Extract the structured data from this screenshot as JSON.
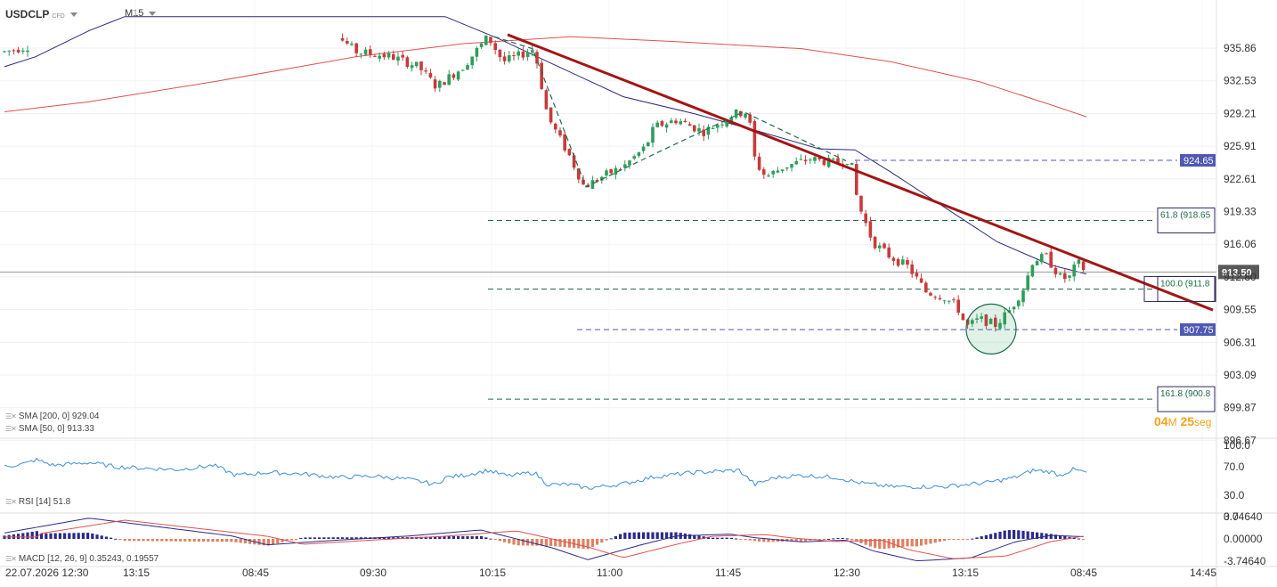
{
  "header": {
    "symbol": "USDCLP",
    "instrument_type": "CFD",
    "timeframe": "M15"
  },
  "indicators": {
    "sma200_label": "SMA [200, 0] 929.04",
    "sma50_label": "SMA [50, 0] 913.33",
    "rsi_label": "RSI [14] 51.8",
    "macd_label": "MACD [12, 26, 9] 0.35243, 0.19557"
  },
  "countdown": {
    "minutes": "04",
    "minutes_unit": "M",
    "seconds": "25",
    "seconds_unit": "seg"
  },
  "colors": {
    "up": "#2e9e5b",
    "down": "#c83a3a",
    "trend": "#a31515",
    "sma200": "#e05050",
    "sma50": "#2a2a7a",
    "fib": "#1e6b4a",
    "level": "#4f59b4",
    "rsi": "#3b8fd8",
    "macd_pos": "#2a2a8a",
    "macd_neg": "#e08060"
  },
  "chart_data": {
    "type": "candlestick",
    "price_axis_ticks": [
      "935.86",
      "932.53",
      "929.21",
      "925.91",
      "922.61",
      "919.33",
      "916.06",
      "912.80",
      "909.55",
      "906.31",
      "903.09",
      "899.87",
      "896.67"
    ],
    "time_axis_ticks": [
      "22.07.2026 12:30",
      "13:15",
      "08:45",
      "09:30",
      "10:15",
      "11:00",
      "11:45",
      "12:30",
      "13:15",
      "08:45",
      "14:45"
    ],
    "current_price": "913.50",
    "levels": [
      {
        "name": "resistance",
        "label": "924.65",
        "value": 924.65
      },
      {
        "name": "support",
        "label": "907.75",
        "value": 907.75
      }
    ],
    "fibonacci": [
      {
        "label": "61.8 (918.65",
        "value": 918.65
      },
      {
        "label": "100.0 (911.8",
        "value": 911.8
      },
      {
        "label": "161.8 (900.8",
        "value": 900.8
      }
    ],
    "sma200": {
      "name": "SMA [200, 0]",
      "value": 929.04
    },
    "sma50": {
      "name": "SMA [50, 0]",
      "value": 913.33
    },
    "rsi": {
      "name": "RSI [14]",
      "value": 51.8,
      "axis_ticks": [
        "100.0",
        "70.0",
        "30.0",
        "0.0"
      ]
    },
    "macd": {
      "name": "MACD [12, 26, 9]",
      "macd": 0.35243,
      "signal": 0.19557,
      "axis_ticks": [
        "3.74640",
        "0.00000",
        "-3.74640"
      ]
    },
    "annotations": [
      "descending trendline",
      "zigzag pattern (dashed)",
      "circled low near 907.75"
    ]
  }
}
